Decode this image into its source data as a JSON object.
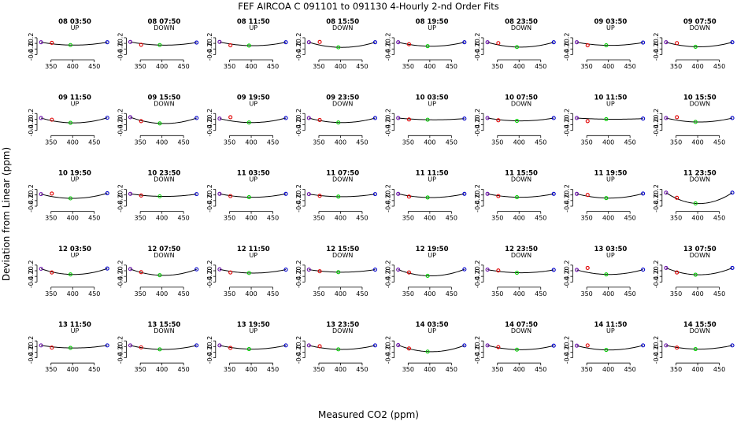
{
  "title": "FEF   AIRCOA C   091101 to 091130   4-Hourly 2-nd Order Fits",
  "xlabel": "Measured CO2 (ppm)",
  "ylabel": "Deviation from Linear (ppm)",
  "colors": {
    "curve": "#000000",
    "low": "#6a0dad",
    "mid1": "#e00000",
    "mid2": "#00cc00",
    "high": "#0000cc"
  },
  "chart_data": {
    "type": "scatter",
    "layout": "grid 5 rows x 8 columns of small panels",
    "xlim": [
      325,
      485
    ],
    "ylim": [
      -0.5,
      0.45
    ],
    "x_ticks": [
      350,
      400,
      450
    ],
    "y_ticks": [
      -0.4,
      -0.2,
      0,
      0.2
    ],
    "standard_x": [
      327,
      352,
      395,
      480
    ],
    "panels": [
      {
        "label": "08 03:50",
        "mode": "UP",
        "y": [
          0.04,
          0.02,
          -0.06,
          0.04
        ]
      },
      {
        "label": "08 07:50",
        "mode": "DOWN",
        "y": [
          0.05,
          -0.05,
          -0.06,
          0.03
        ]
      },
      {
        "label": "08 11:50",
        "mode": "UP",
        "y": [
          0.05,
          -0.07,
          -0.08,
          0.04
        ]
      },
      {
        "label": "08 15:50",
        "mode": "DOWN",
        "y": [
          0.04,
          0.05,
          -0.14,
          0.04
        ]
      },
      {
        "label": "08 19:50",
        "mode": "UP",
        "y": [
          0.04,
          -0.03,
          -0.1,
          0.04
        ]
      },
      {
        "label": "08 23:50",
        "mode": "DOWN",
        "y": [
          0.04,
          0.01,
          -0.13,
          0.04
        ]
      },
      {
        "label": "09 03:50",
        "mode": "UP",
        "y": [
          0.04,
          -0.07,
          -0.07,
          0.03
        ]
      },
      {
        "label": "09 07:50",
        "mode": "DOWN",
        "y": [
          0.04,
          0.01,
          -0.12,
          0.04
        ]
      },
      {
        "label": "09 11:50",
        "mode": "UP",
        "y": [
          0.04,
          -0.02,
          -0.13,
          0.05
        ]
      },
      {
        "label": "09 15:50",
        "mode": "DOWN",
        "y": [
          0.07,
          -0.07,
          -0.15,
          0.04
        ]
      },
      {
        "label": "09 19:50",
        "mode": "UP",
        "y": [
          0.02,
          0.07,
          -0.12,
          0.04
        ]
      },
      {
        "label": "09 23:50",
        "mode": "DOWN",
        "y": [
          0.04,
          -0.03,
          -0.12,
          0.04
        ]
      },
      {
        "label": "10 03:50",
        "mode": "UP",
        "y": [
          0.04,
          -0.01,
          -0.02,
          0.02
        ]
      },
      {
        "label": "10 07:50",
        "mode": "DOWN",
        "y": [
          0.04,
          -0.04,
          -0.06,
          0.04
        ]
      },
      {
        "label": "10 11:50",
        "mode": "UP",
        "y": [
          0.04,
          -0.07,
          0.0,
          0.02
        ]
      },
      {
        "label": "10 15:50",
        "mode": "DOWN",
        "y": [
          0.04,
          0.07,
          -0.1,
          0.04
        ]
      },
      {
        "label": "10 19:50",
        "mode": "UP",
        "y": [
          0.03,
          0.05,
          -0.12,
          0.06
        ]
      },
      {
        "label": "10 23:50",
        "mode": "DOWN",
        "y": [
          0.04,
          -0.02,
          -0.05,
          0.03
        ]
      },
      {
        "label": "11 03:50",
        "mode": "UP",
        "y": [
          0.04,
          -0.04,
          -0.08,
          0.04
        ]
      },
      {
        "label": "11 07:50",
        "mode": "DOWN",
        "y": [
          0.03,
          -0.03,
          -0.06,
          0.03
        ]
      },
      {
        "label": "11 11:50",
        "mode": "UP",
        "y": [
          0.04,
          -0.06,
          -0.09,
          0.04
        ]
      },
      {
        "label": "11 15:50",
        "mode": "DOWN",
        "y": [
          0.04,
          -0.04,
          -0.08,
          0.04
        ]
      },
      {
        "label": "11 19:50",
        "mode": "UP",
        "y": [
          0.04,
          0.0,
          -0.11,
          0.05
        ]
      },
      {
        "label": "11 23:50",
        "mode": "DOWN",
        "y": [
          0.08,
          -0.1,
          -0.3,
          0.08
        ]
      },
      {
        "label": "12 03:50",
        "mode": "UP",
        "y": [
          0.07,
          -0.06,
          -0.13,
          0.08
        ]
      },
      {
        "label": "12 07:50",
        "mode": "DOWN",
        "y": [
          0.06,
          -0.05,
          -0.16,
          0.05
        ]
      },
      {
        "label": "12 11:50",
        "mode": "UP",
        "y": [
          0.05,
          -0.06,
          -0.08,
          0.04
        ]
      },
      {
        "label": "12 15:50",
        "mode": "DOWN",
        "y": [
          0.04,
          -0.02,
          -0.05,
          0.04
        ]
      },
      {
        "label": "12 19:50",
        "mode": "UP",
        "y": [
          0.04,
          -0.06,
          -0.18,
          0.05
        ]
      },
      {
        "label": "12 23:50",
        "mode": "DOWN",
        "y": [
          0.04,
          0.01,
          -0.07,
          0.03
        ]
      },
      {
        "label": "13 03:50",
        "mode": "UP",
        "y": [
          0.03,
          0.1,
          -0.13,
          0.04
        ]
      },
      {
        "label": "13 07:50",
        "mode": "DOWN",
        "y": [
          0.1,
          -0.06,
          -0.14,
          0.1
        ]
      },
      {
        "label": "13 11:50",
        "mode": "UP",
        "y": [
          0.04,
          -0.04,
          -0.05,
          0.04
        ]
      },
      {
        "label": "13 15:50",
        "mode": "DOWN",
        "y": [
          0.04,
          -0.03,
          -0.1,
          0.04
        ]
      },
      {
        "label": "13 19:50",
        "mode": "UP",
        "y": [
          0.04,
          -0.05,
          -0.09,
          0.04
        ]
      },
      {
        "label": "13 23:50",
        "mode": "DOWN",
        "y": [
          0.04,
          0.01,
          -0.1,
          0.04
        ]
      },
      {
        "label": "14 03:50",
        "mode": "UP",
        "y": [
          0.05,
          -0.07,
          -0.18,
          0.04
        ]
      },
      {
        "label": "14 07:50",
        "mode": "DOWN",
        "y": [
          0.04,
          -0.02,
          -0.11,
          0.03
        ]
      },
      {
        "label": "14 11:50",
        "mode": "UP",
        "y": [
          0.03,
          0.04,
          -0.12,
          0.04
        ]
      },
      {
        "label": "14 15:50",
        "mode": "DOWN",
        "y": [
          0.04,
          -0.04,
          -0.09,
          0.04
        ]
      }
    ]
  }
}
